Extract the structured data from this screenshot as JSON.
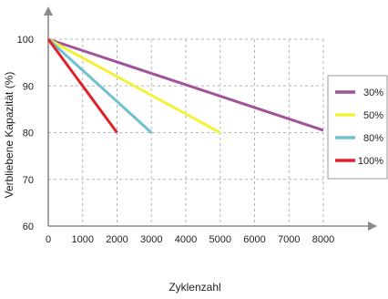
{
  "chart_data": {
    "type": "line",
    "title": "",
    "xlabel": "Zyklenzahl",
    "ylabel": "Verbliebene Kapazität (%)",
    "xlim": [
      0,
      8000
    ],
    "ylim": [
      60,
      100
    ],
    "x_ticks": [
      "0",
      "1000",
      "2000",
      "3000",
      "4000",
      "5000",
      "6000",
      "7000",
      "8000"
    ],
    "y_ticks": [
      "60",
      "70",
      "80",
      "90",
      "100"
    ],
    "grid": true,
    "legend_position": "right",
    "series": [
      {
        "name": "30%",
        "color": "#a0529a",
        "x": [
          0,
          8000
        ],
        "y": [
          100,
          80.5
        ]
      },
      {
        "name": "50%",
        "color": "#f5f03a",
        "x": [
          0,
          5000
        ],
        "y": [
          100,
          80
        ]
      },
      {
        "name": "80%",
        "color": "#6ec1cf",
        "x": [
          0,
          3000
        ],
        "y": [
          100,
          80
        ]
      },
      {
        "name": "100%",
        "color": "#e0202a",
        "x": [
          0,
          2000
        ],
        "y": [
          100,
          80
        ]
      }
    ]
  }
}
